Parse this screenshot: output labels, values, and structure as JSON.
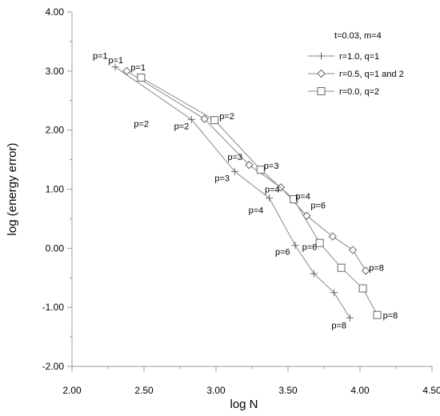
{
  "chart_data": {
    "type": "line",
    "title": "",
    "xlabel": "log N",
    "ylabel": "log (energy error)",
    "xlim": [
      2.0,
      4.5
    ],
    "ylim": [
      -2.0,
      4.0
    ],
    "x_ticks": [
      2.0,
      2.5,
      3.0,
      3.5,
      4.0,
      4.5
    ],
    "x_tick_labels": [
      "2.00",
      "2.50",
      "3.00",
      "3.50",
      "4.00",
      "4.50"
    ],
    "y_ticks": [
      -2.0,
      -1.0,
      0.0,
      1.0,
      2.0,
      3.0,
      4.0
    ],
    "y_tick_labels": [
      "-2.00",
      "-1.00",
      "0.00",
      "1.00",
      "2.00",
      "3.00",
      "4.00"
    ],
    "grid": false,
    "legend_position": "top-right",
    "legend_title": "t=0.03, m=4",
    "series": [
      {
        "name": "r=1.0, q=1",
        "marker": "plus",
        "color": "#666666",
        "x": [
          2.3,
          2.83,
          3.13,
          3.37,
          3.55,
          3.68,
          3.82,
          3.93
        ],
        "y": [
          3.07,
          2.18,
          1.3,
          0.85,
          0.05,
          -0.43,
          -0.75,
          -1.18
        ]
      },
      {
        "name": "r=0.5, q=1 and 2",
        "marker": "diamond",
        "color": "#666666",
        "x": [
          2.38,
          2.92,
          3.23,
          3.45,
          3.63,
          3.81,
          3.95,
          4.04
        ],
        "y": [
          3.0,
          2.19,
          1.41,
          1.03,
          0.55,
          0.2,
          -0.03,
          -0.38
        ]
      },
      {
        "name": "r=0.0, q=2",
        "marker": "square",
        "color": "#666666",
        "x": [
          2.48,
          2.99,
          3.31,
          3.54,
          3.72,
          3.87,
          4.02,
          4.12
        ],
        "y": [
          2.89,
          2.17,
          1.33,
          0.83,
          0.09,
          -0.33,
          -0.68,
          -1.13
        ]
      }
    ],
    "annotations": [
      "p=1",
      "p=1",
      "p=1",
      "p=2",
      "p=2",
      "p=2",
      "p=3",
      "p=3",
      "p=3",
      "p=4",
      "p=4",
      "p=4",
      "p=6",
      "p=6",
      "p=6",
      "p=8",
      "p=8",
      "p=8"
    ]
  }
}
